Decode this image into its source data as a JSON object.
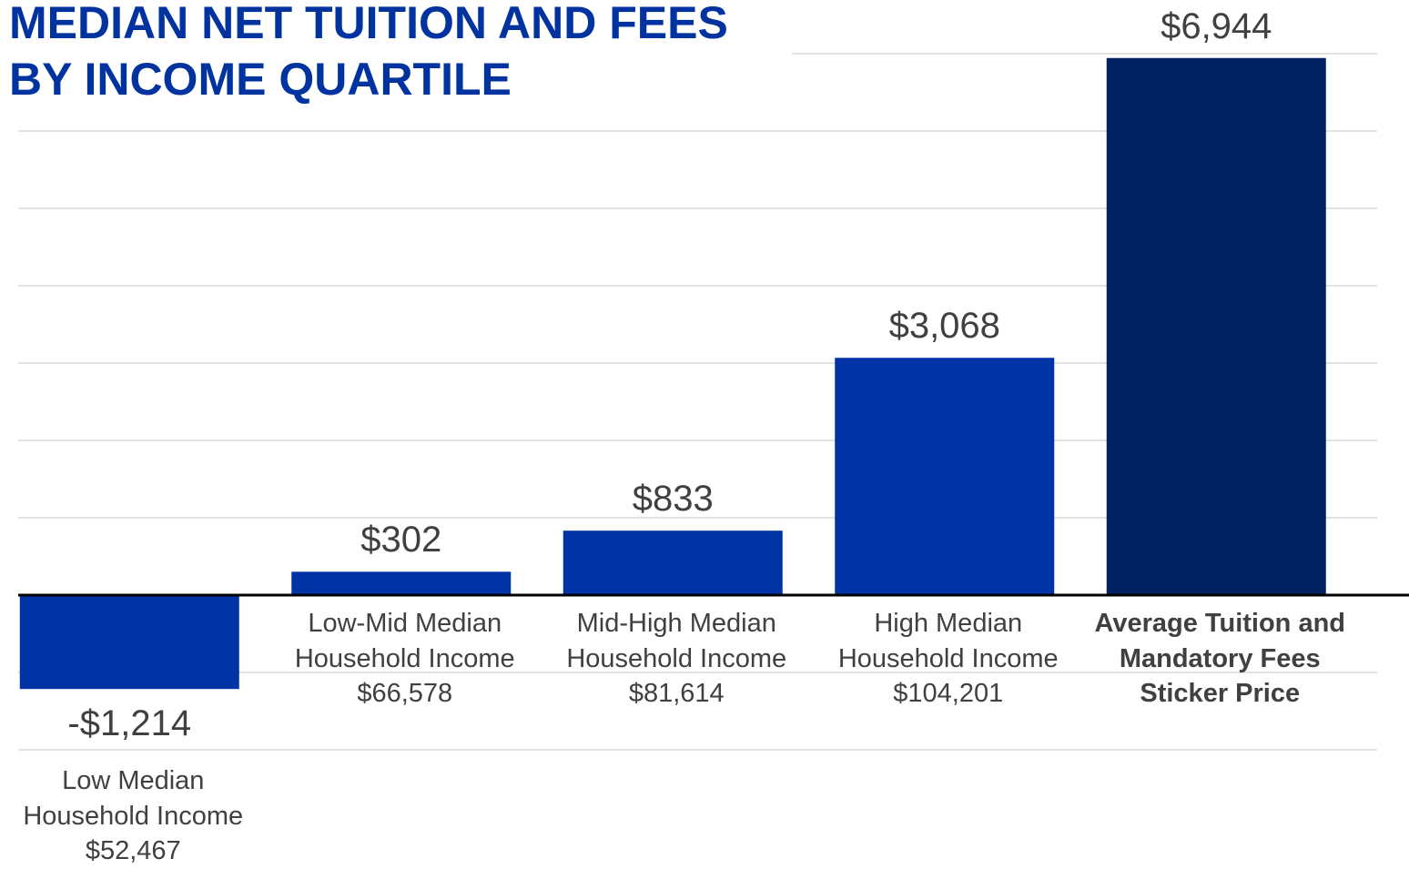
{
  "chart_data": {
    "type": "bar",
    "title": "MEDIAN NET TUITION AND FEES BY INCOME QUARTILE",
    "categories": [
      "Low Median Household Income $52,467",
      "Low-Mid Median Household Income $66,578",
      "Mid-High Median Household Income $81,614",
      "High Median Household Income $104,201",
      "Average Tuition and Mandatory Fees Sticker Price"
    ],
    "values": [
      -1214,
      302,
      833,
      3068,
      6944
    ],
    "value_labels": [
      "-$1,214",
      "$302",
      "$833",
      "$3,068",
      "$6,944"
    ],
    "colors": [
      "#0033a6",
      "#0033a6",
      "#0033a6",
      "#0033a6",
      "#002060"
    ],
    "ylim": [
      -2000,
      7000
    ],
    "yticks": [
      -2000,
      -1000,
      0,
      1000,
      2000,
      3000,
      4000,
      5000,
      6000,
      7000
    ],
    "grid": true
  }
}
